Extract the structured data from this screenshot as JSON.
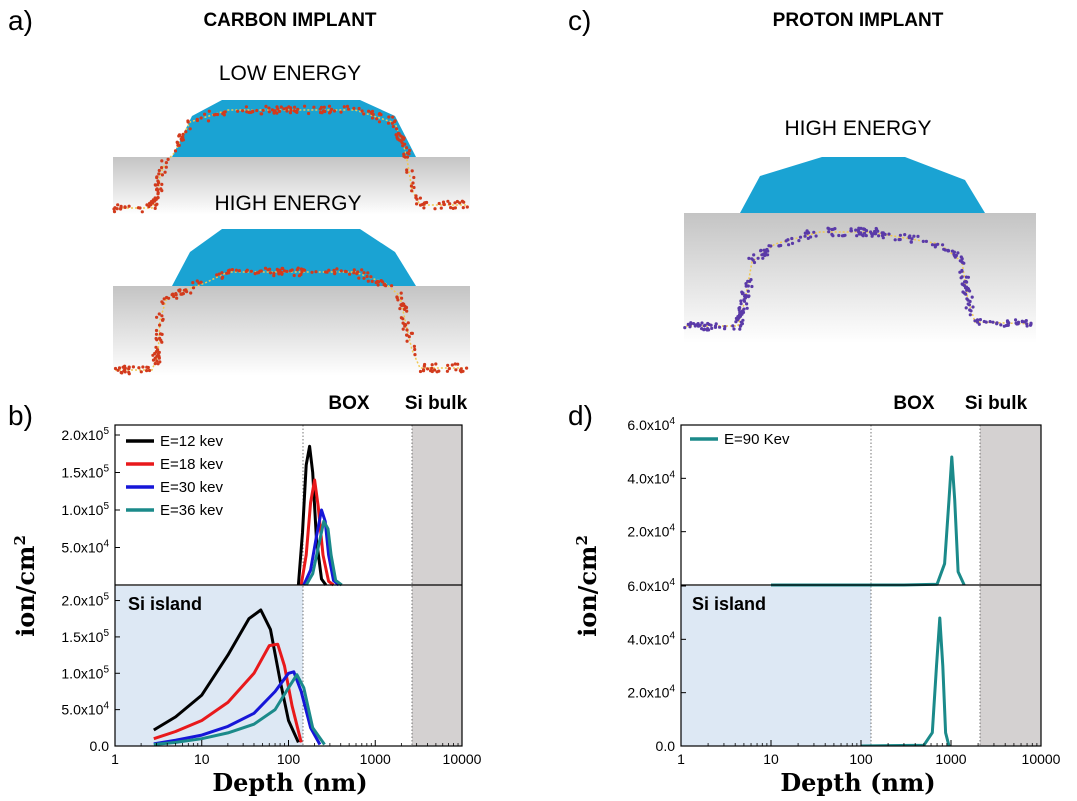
{
  "labels": {
    "a": "a)",
    "b": "b)",
    "c": "c)",
    "d": "d)",
    "carbon_title": "CARBON IMPLANT",
    "proton_title": "PROTON IMPLANT",
    "low_energy": "LOW ENERGY",
    "high_energy_a": "HIGH ENERGY",
    "high_energy_c": "HIGH ENERGY",
    "box_b": "BOX",
    "sibulk_b": "Si bulk",
    "box_d": "BOX",
    "sibulk_d": "Si bulk",
    "si_island_b": "Si island",
    "si_island_d": "Si island"
  },
  "colors": {
    "device_blue": "#1aa3d3",
    "dot_red": "#d23a1c",
    "dot_purple": "#5a3aa8",
    "dot_line": "#f0c850",
    "island_fill": "#dde8f4",
    "bulk_fill": "#d4d1d1"
  },
  "chart_data": [
    {
      "type": "line",
      "panel": "b",
      "xlabel": "Depth (nm)",
      "ylabel": "ion/cm2",
      "xscale": "log",
      "xlim": [
        1,
        10000
      ],
      "x_ticks": [
        "1",
        "10",
        "100",
        "1000",
        "10000"
      ],
      "y_tick_labels_top": [
        "5.0x10^4",
        "1.0x10^5",
        "1.5x10^5",
        "2.0x10^5"
      ],
      "y_tick_labels_bottom": [
        "0.0",
        "5.0x10^4",
        "1.0x10^5",
        "1.5x10^5",
        "2.0x10^5"
      ],
      "ylim": [
        0,
        220000
      ],
      "regions": [
        "Si island",
        "BOX",
        "Si bulk"
      ],
      "region_bounds": [
        130,
        2200
      ],
      "legend": "top-left",
      "subplots": [
        {
          "name": "top",
          "series": [
            {
              "name": "E=12 kev",
              "color": "#000000",
              "x": [
                130,
                145,
                160,
                175,
                190,
                210,
                240,
                270
              ],
              "y": [
                0,
                70000,
                160000,
                185000,
                150000,
                60000,
                8000,
                0
              ]
            },
            {
              "name": "E=18 kev",
              "color": "#e8191b",
              "x": [
                140,
                160,
                180,
                200,
                220,
                250,
                290,
                330
              ],
              "y": [
                0,
                40000,
                110000,
                140000,
                105000,
                40000,
                5000,
                0
              ]
            },
            {
              "name": "E=30 kev",
              "color": "#1616d8",
              "x": [
                150,
                180,
                210,
                240,
                265,
                290,
                330,
                380
              ],
              "y": [
                0,
                20000,
                65000,
                100000,
                85000,
                40000,
                6000,
                0
              ]
            },
            {
              "name": "E=36 kev",
              "color": "#1b8a8a",
              "x": [
                160,
                190,
                220,
                255,
                285,
                310,
                350,
                410
              ],
              "y": [
                0,
                15000,
                50000,
                85000,
                75000,
                40000,
                6000,
                0
              ]
            }
          ]
        },
        {
          "name": "bottom",
          "series": [
            {
              "name": "E=12 kev",
              "color": "#000000",
              "x": [
                2.8,
                5,
                10,
                20,
                35,
                48,
                62,
                80,
                100,
                130
              ],
              "y": [
                22000,
                40000,
                70000,
                125000,
                175000,
                187000,
                160000,
                90000,
                35000,
                5000
              ]
            },
            {
              "name": "E=18 kev",
              "color": "#e8191b",
              "x": [
                2.8,
                5,
                10,
                20,
                40,
                60,
                75,
                90,
                110,
                140
              ],
              "y": [
                10000,
                20000,
                35000,
                60000,
                100000,
                138000,
                140000,
                110000,
                55000,
                5000
              ]
            },
            {
              "name": "E=30 kev",
              "color": "#1616d8",
              "x": [
                2.8,
                5,
                10,
                20,
                40,
                70,
                100,
                115,
                140,
                180,
                230
              ],
              "y": [
                3000,
                8000,
                15000,
                27000,
                45000,
                75000,
                100000,
                102000,
                75000,
                25000,
                2000
              ]
            },
            {
              "name": "E=36 kev",
              "color": "#1b8a8a",
              "x": [
                2.8,
                5,
                10,
                20,
                40,
                70,
                100,
                125,
                150,
                190,
                260
              ],
              "y": [
                2000,
                5000,
                10000,
                18000,
                30000,
                50000,
                80000,
                98000,
                80000,
                25000,
                2000
              ]
            }
          ]
        }
      ]
    },
    {
      "type": "line",
      "panel": "d",
      "xlabel": "Depth (nm)",
      "ylabel": "ion/cm2",
      "xscale": "log",
      "xlim": [
        1,
        10000
      ],
      "x_ticks": [
        "1",
        "10",
        "100",
        "1000",
        "10000"
      ],
      "y_tick_labels_top": [
        "2.0x10^4",
        "4.0x10^4",
        "6.0x10^4"
      ],
      "y_tick_labels_bottom": [
        "0.0",
        "2.0x10^4",
        "4.0x10^4",
        "6.0x10^4"
      ],
      "ylim": [
        0,
        60000
      ],
      "regions": [
        "Si island",
        "BOX",
        "Si bulk"
      ],
      "region_bounds": [
        130,
        2200
      ],
      "legend": "top-left",
      "subplots": [
        {
          "name": "top",
          "series": [
            {
              "name": "E=90 Kev",
              "color": "#1b8a8a",
              "x": [
                10,
                300,
                700,
                850,
                950,
                1020,
                1100,
                1200,
                1400
              ],
              "y": [
                0,
                0,
                300,
                8000,
                32000,
                48000,
                32000,
                5000,
                0
              ]
            }
          ]
        },
        {
          "name": "bottom",
          "series": [
            {
              "name": "E=90 Kev",
              "color": "#1b8a8a",
              "x": [
                100,
                500,
                620,
                690,
                750,
                810,
                870,
                950
              ],
              "y": [
                0,
                300,
                5000,
                30000,
                48000,
                30000,
                5000,
                0
              ]
            }
          ]
        }
      ]
    }
  ]
}
